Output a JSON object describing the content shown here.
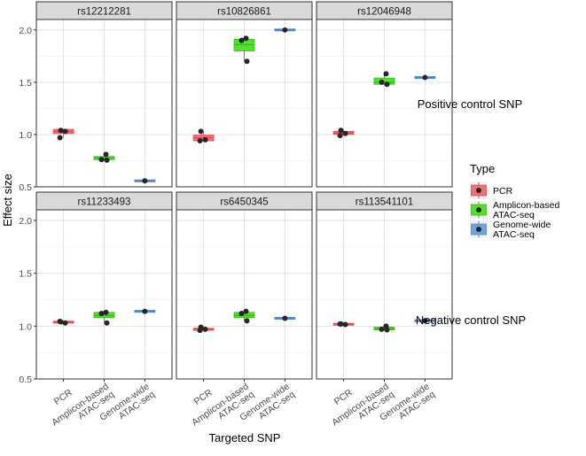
{
  "chart_data": {
    "type": "faceted boxplot",
    "xlabel": "Targeted SNP",
    "ylabel": "Effect size",
    "ylim": [
      0.5,
      2.1
    ],
    "yticks": [
      0.5,
      1.0,
      1.5,
      2.0
    ],
    "ytick_labels": [
      "0.5",
      "1.0",
      "1.5",
      "2.0"
    ],
    "categories": [
      "PCR",
      "Amplicon-based ATAC-seq",
      "Genome-wide ATAC-seq"
    ],
    "category_tick_lines": [
      [
        "PCR"
      ],
      [
        "Amplicon-based",
        "ATAC-seq"
      ],
      [
        "Genome-wide",
        "ATAC-seq"
      ]
    ],
    "legend": {
      "title": "Type",
      "position": "right",
      "items": [
        {
          "lines": [
            "PCR"
          ],
          "color": "#F0707A"
        },
        {
          "lines": [
            "Amplicon-based",
            "ATAC-seq"
          ],
          "color": "#55E02F"
        },
        {
          "lines": [
            "Genome-wide",
            "ATAC-seq"
          ],
          "color": "#6FA3DE"
        }
      ]
    },
    "row_labels": [
      "Positive control SNP",
      "Negative control SNP"
    ],
    "panels": [
      {
        "snp": "rs12212281",
        "row": 0,
        "col": 0,
        "groups": [
          {
            "q1": 1.01,
            "median": 1.03,
            "q3": 1.05,
            "points": [
              1.04,
              1.03,
              0.97
            ]
          },
          {
            "q1": 0.76,
            "median": 0.775,
            "q3": 0.79,
            "points": [
              0.81,
              0.76,
              0.755
            ]
          },
          {
            "q1": 0.553,
            "median": 0.557,
            "q3": 0.561,
            "points": [
              0.557
            ]
          }
        ]
      },
      {
        "snp": "rs10826861",
        "row": 0,
        "col": 1,
        "groups": [
          {
            "q1": 0.94,
            "median": 0.97,
            "q3": 0.995,
            "points": [
              1.03,
              0.95,
              0.94
            ]
          },
          {
            "q1": 1.8,
            "median": 1.86,
            "q3": 1.91,
            "points": [
              1.92,
              1.9,
              1.7
            ]
          },
          {
            "q1": 1.996,
            "median": 2.0,
            "q3": 2.004,
            "points": [
              2.0
            ]
          }
        ]
      },
      {
        "snp": "rs12046948",
        "row": 0,
        "col": 2,
        "groups": [
          {
            "q1": 1.0,
            "median": 1.015,
            "q3": 1.03,
            "points": [
              1.04,
              1.01,
              0.99
            ]
          },
          {
            "q1": 1.48,
            "median": 1.5,
            "q3": 1.54,
            "points": [
              1.58,
              1.5,
              1.48
            ]
          },
          {
            "q1": 1.541,
            "median": 1.545,
            "q3": 1.549,
            "points": [
              1.545
            ]
          }
        ]
      },
      {
        "snp": "rs11233493",
        "row": 1,
        "col": 0,
        "groups": [
          {
            "q1": 1.03,
            "median": 1.04,
            "q3": 1.045,
            "points": [
              1.04,
              1.03,
              1.045
            ]
          },
          {
            "q1": 1.08,
            "median": 1.1,
            "q3": 1.13,
            "points": [
              1.13,
              1.12,
              1.03
            ]
          },
          {
            "q1": 1.136,
            "median": 1.14,
            "q3": 1.144,
            "points": [
              1.14
            ]
          }
        ]
      },
      {
        "snp": "rs6450345",
        "row": 1,
        "col": 1,
        "groups": [
          {
            "q1": 0.96,
            "median": 0.97,
            "q3": 0.98,
            "points": [
              0.99,
              0.97,
              0.96
            ]
          },
          {
            "q1": 1.08,
            "median": 1.1,
            "q3": 1.13,
            "points": [
              1.14,
              1.12,
              1.05
            ]
          },
          {
            "q1": 1.07,
            "median": 1.074,
            "q3": 1.078,
            "points": [
              1.074
            ]
          }
        ]
      },
      {
        "snp": "rs113541101",
        "row": 1,
        "col": 2,
        "groups": [
          {
            "q1": 1.01,
            "median": 1.017,
            "q3": 1.025,
            "points": [
              1.02,
              1.015,
              1.02
            ]
          },
          {
            "q1": 0.965,
            "median": 0.975,
            "q3": 0.99,
            "points": [
              1.0,
              0.97,
              0.965
            ]
          },
          {
            "q1": 1.047,
            "median": 1.051,
            "q3": 1.055,
            "points": [
              1.051
            ]
          }
        ]
      }
    ]
  }
}
